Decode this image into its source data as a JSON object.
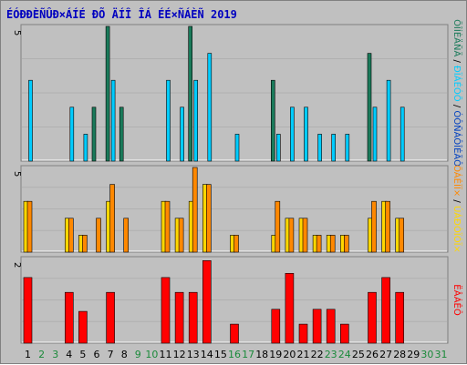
{
  "title": "ÉÓÐÐÈÑÛÐ×ÁÍÉ ÐÕ ÄÍÎ ÎÁ ÉÉ×ÑÁÈÑ 2019",
  "colors": {
    "background": "#c0c0c0",
    "title": "#0000c0",
    "visits": "#1a7a5a",
    "pages": "#00ccff",
    "files": "#0040c0",
    "hits": "#ffd700",
    "sites": "#ff8800",
    "kbytes": "#ff0000",
    "weekday": "#000000",
    "weekend": "#1a8a3a"
  },
  "chart_data": {
    "type": "bar",
    "title": "ÉÓÐÐÈÑÛÐ×ÁÍÉ ÐÕ ÄÍÎ ÎÁ ÉÉ×ÑÁÈÑ 2019",
    "categories": [
      "1",
      "2",
      "3",
      "4",
      "5",
      "6",
      "7",
      "8",
      "9",
      "10",
      "11",
      "12",
      "13",
      "14",
      "15",
      "16",
      "17",
      "18",
      "19",
      "20",
      "21",
      "22",
      "23",
      "24",
      "25",
      "26",
      "27",
      "28",
      "29",
      "30",
      "31"
    ],
    "weekend_days": [
      "2",
      "3",
      "9",
      "10",
      "16",
      "17",
      "23",
      "24",
      "30",
      "31"
    ],
    "panels": [
      {
        "ymax": 5,
        "ytick_label": "5",
        "side_label": [
          "ÕÎÍÈÄÑÄ",
          "ÐÏÁÉÓÕ",
          "ÓÔÑÁÔÎÉÃÔ"
        ],
        "series": [
          {
            "name": "ÕÎÍÈÄÑÄ",
            "values": [
              0,
              0,
              0,
              0,
              0,
              2,
              5,
              2,
              0,
              0,
              0,
              0,
              5,
              0,
              0,
              0,
              0,
              0,
              3,
              0,
              0,
              0,
              0,
              0,
              0,
              4,
              0,
              0,
              0,
              0,
              0
            ]
          },
          {
            "name": "ÐÏÁÉÓÕ",
            "values": [
              0,
              0,
              0,
              0,
              0,
              0,
              0,
              0,
              0,
              0,
              0,
              0,
              0,
              0,
              0,
              0,
              0,
              0,
              0,
              0,
              0,
              0,
              0,
              0,
              0,
              0,
              0,
              0,
              0,
              0,
              0
            ]
          },
          {
            "name": "ÓÔÑÁÔÎÉÃÔ",
            "values": [
              3,
              0,
              0,
              2,
              1,
              0,
              3,
              0,
              0,
              0,
              3,
              2,
              3,
              4,
              0,
              1,
              0,
              0,
              1,
              2,
              2,
              1,
              1,
              1,
              0,
              2,
              3,
              2,
              0,
              0,
              0
            ]
          }
        ]
      },
      {
        "ymax": 5,
        "ytick_label": "5",
        "side_label": [
          "ÕÁÊÌÏ×",
          "ÚÁÐÒÏÓÏ×"
        ],
        "series": [
          {
            "name": "ÚÁÐÒÏÓÏ×",
            "values": [
              3,
              0,
              0,
              2,
              1,
              0,
              3,
              0,
              0,
              0,
              3,
              2,
              3,
              4,
              0,
              1,
              0,
              0,
              1,
              2,
              2,
              1,
              1,
              1,
              0,
              2,
              3,
              2,
              0,
              0,
              0
            ]
          },
          {
            "name": "ÕÁÊÌÏ×",
            "values": [
              3,
              0,
              0,
              2,
              1,
              2,
              4,
              2,
              0,
              0,
              3,
              2,
              5,
              4,
              0,
              1,
              0,
              0,
              3,
              2,
              2,
              1,
              1,
              1,
              0,
              3,
              3,
              2,
              0,
              0,
              0
            ]
          }
        ]
      },
      {
        "ymax": 2,
        "ytick_label": "2",
        "side_label": [
          "ËÂÁÊÔ"
        ],
        "series": [
          {
            "name": "ËÂÁÊÔ",
            "values": [
              1.55,
              0,
              0,
              1.2,
              0.75,
              0,
              1.2,
              0,
              0,
              0,
              1.55,
              1.2,
              1.2,
              1.95,
              0,
              0.45,
              0,
              0,
              0.8,
              1.65,
              0.45,
              0.8,
              0.8,
              0.45,
              0,
              1.2,
              1.55,
              1.2,
              0,
              0,
              0
            ]
          }
        ]
      }
    ]
  }
}
